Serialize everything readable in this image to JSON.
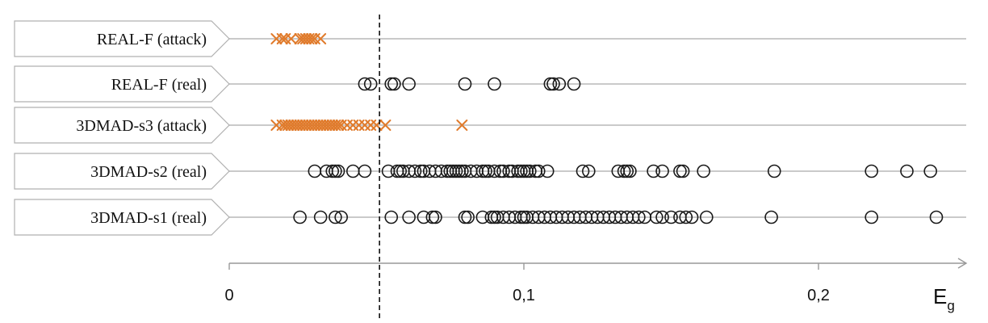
{
  "chart_data": {
    "type": "scatter",
    "title": "",
    "xlabel": "E",
    "xlabel_subscript": "g",
    "xlim": [
      0,
      0.25
    ],
    "x_ticks": [
      {
        "value": 0,
        "label": "0"
      },
      {
        "value": 0.1,
        "label": "0,1"
      },
      {
        "value": 0.2,
        "label": "0,2"
      }
    ],
    "threshold": 0.051,
    "grid": false,
    "colors": {
      "circle": "#1a1a1a",
      "cross": "#e07b2c"
    },
    "series": [
      {
        "name": "REAL-F (attack)",
        "marker": "cross",
        "x": [
          0.016,
          0.018,
          0.019,
          0.021,
          0.024,
          0.025,
          0.026,
          0.027,
          0.028,
          0.029,
          0.031
        ]
      },
      {
        "name": "REAL-F (real)",
        "marker": "circle",
        "x": [
          0.046,
          0.048,
          0.055,
          0.056,
          0.061,
          0.08,
          0.09,
          0.109,
          0.11,
          0.112,
          0.117
        ]
      },
      {
        "name": "3DMAD-s3 (attack)",
        "marker": "cross",
        "x": [
          0.016,
          0.018,
          0.019,
          0.02,
          0.021,
          0.022,
          0.023,
          0.024,
          0.025,
          0.026,
          0.027,
          0.028,
          0.029,
          0.03,
          0.031,
          0.032,
          0.033,
          0.034,
          0.035,
          0.036,
          0.037,
          0.038,
          0.04,
          0.042,
          0.044,
          0.046,
          0.048,
          0.05,
          0.053,
          0.079
        ]
      },
      {
        "name": "3DMAD-s2 (real)",
        "marker": "circle",
        "x": [
          0.029,
          0.033,
          0.035,
          0.036,
          0.037,
          0.042,
          0.046,
          0.054,
          0.057,
          0.058,
          0.059,
          0.061,
          0.063,
          0.065,
          0.066,
          0.068,
          0.07,
          0.072,
          0.074,
          0.075,
          0.076,
          0.077,
          0.078,
          0.079,
          0.08,
          0.082,
          0.084,
          0.086,
          0.087,
          0.088,
          0.09,
          0.092,
          0.093,
          0.095,
          0.096,
          0.098,
          0.099,
          0.1,
          0.101,
          0.102,
          0.104,
          0.105,
          0.108,
          0.12,
          0.122,
          0.132,
          0.134,
          0.135,
          0.136,
          0.144,
          0.147,
          0.153,
          0.154,
          0.161,
          0.185,
          0.218,
          0.23,
          0.238
        ]
      },
      {
        "name": "3DMAD-s1 (real)",
        "marker": "circle",
        "x": [
          0.024,
          0.031,
          0.036,
          0.038,
          0.055,
          0.061,
          0.066,
          0.069,
          0.07,
          0.08,
          0.081,
          0.086,
          0.089,
          0.09,
          0.091,
          0.093,
          0.095,
          0.097,
          0.099,
          0.1,
          0.101,
          0.103,
          0.105,
          0.107,
          0.109,
          0.111,
          0.113,
          0.115,
          0.117,
          0.119,
          0.121,
          0.123,
          0.125,
          0.127,
          0.129,
          0.131,
          0.133,
          0.135,
          0.137,
          0.139,
          0.141,
          0.145,
          0.147,
          0.15,
          0.153,
          0.155,
          0.157,
          0.162,
          0.184,
          0.218,
          0.24
        ]
      }
    ]
  }
}
